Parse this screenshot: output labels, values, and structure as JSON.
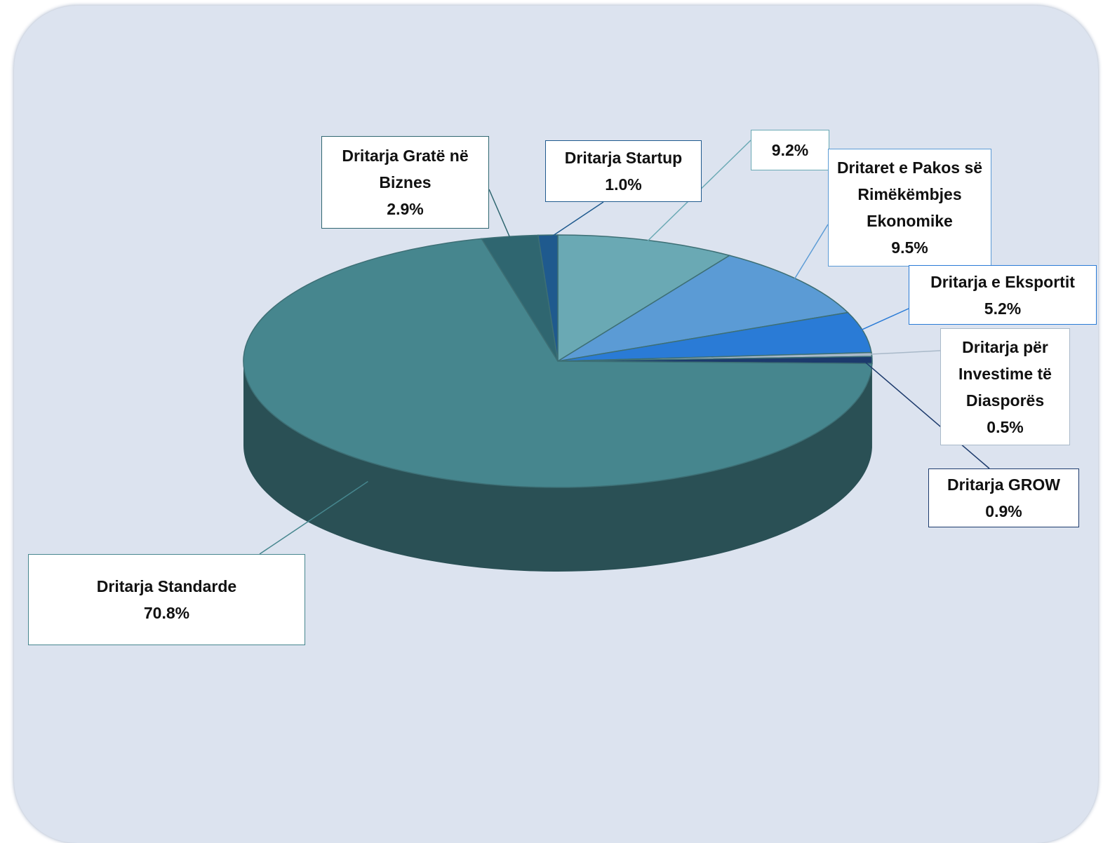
{
  "chart_data": {
    "type": "pie",
    "categories": [
      null,
      "Dritaret e Pakos së Rimëkëmbjes Ekonomike",
      "Dritarja e Eksportit",
      "Dritarja për Investime të Diasporës",
      "Dritarja GROW",
      "Dritarja Standarde",
      "Dritarja Gratë në Biznes",
      "Dritarja Startup"
    ],
    "values": [
      9.2,
      9.5,
      5.2,
      0.5,
      0.9,
      70.8,
      2.9,
      1.0
    ],
    "value_labels": [
      "9.2%",
      "9.5%",
      "5.2%",
      "0.5%",
      "0.9%",
      "70.8%",
      "2.9%",
      "1.0%"
    ],
    "colors": [
      "#6aa9b4",
      "#5b9bd5",
      "#2a7bd6",
      "#a9b9c9",
      "#1c3a6c",
      "#46868e",
      "#2f6670",
      "#1f5a8e"
    ]
  }
}
